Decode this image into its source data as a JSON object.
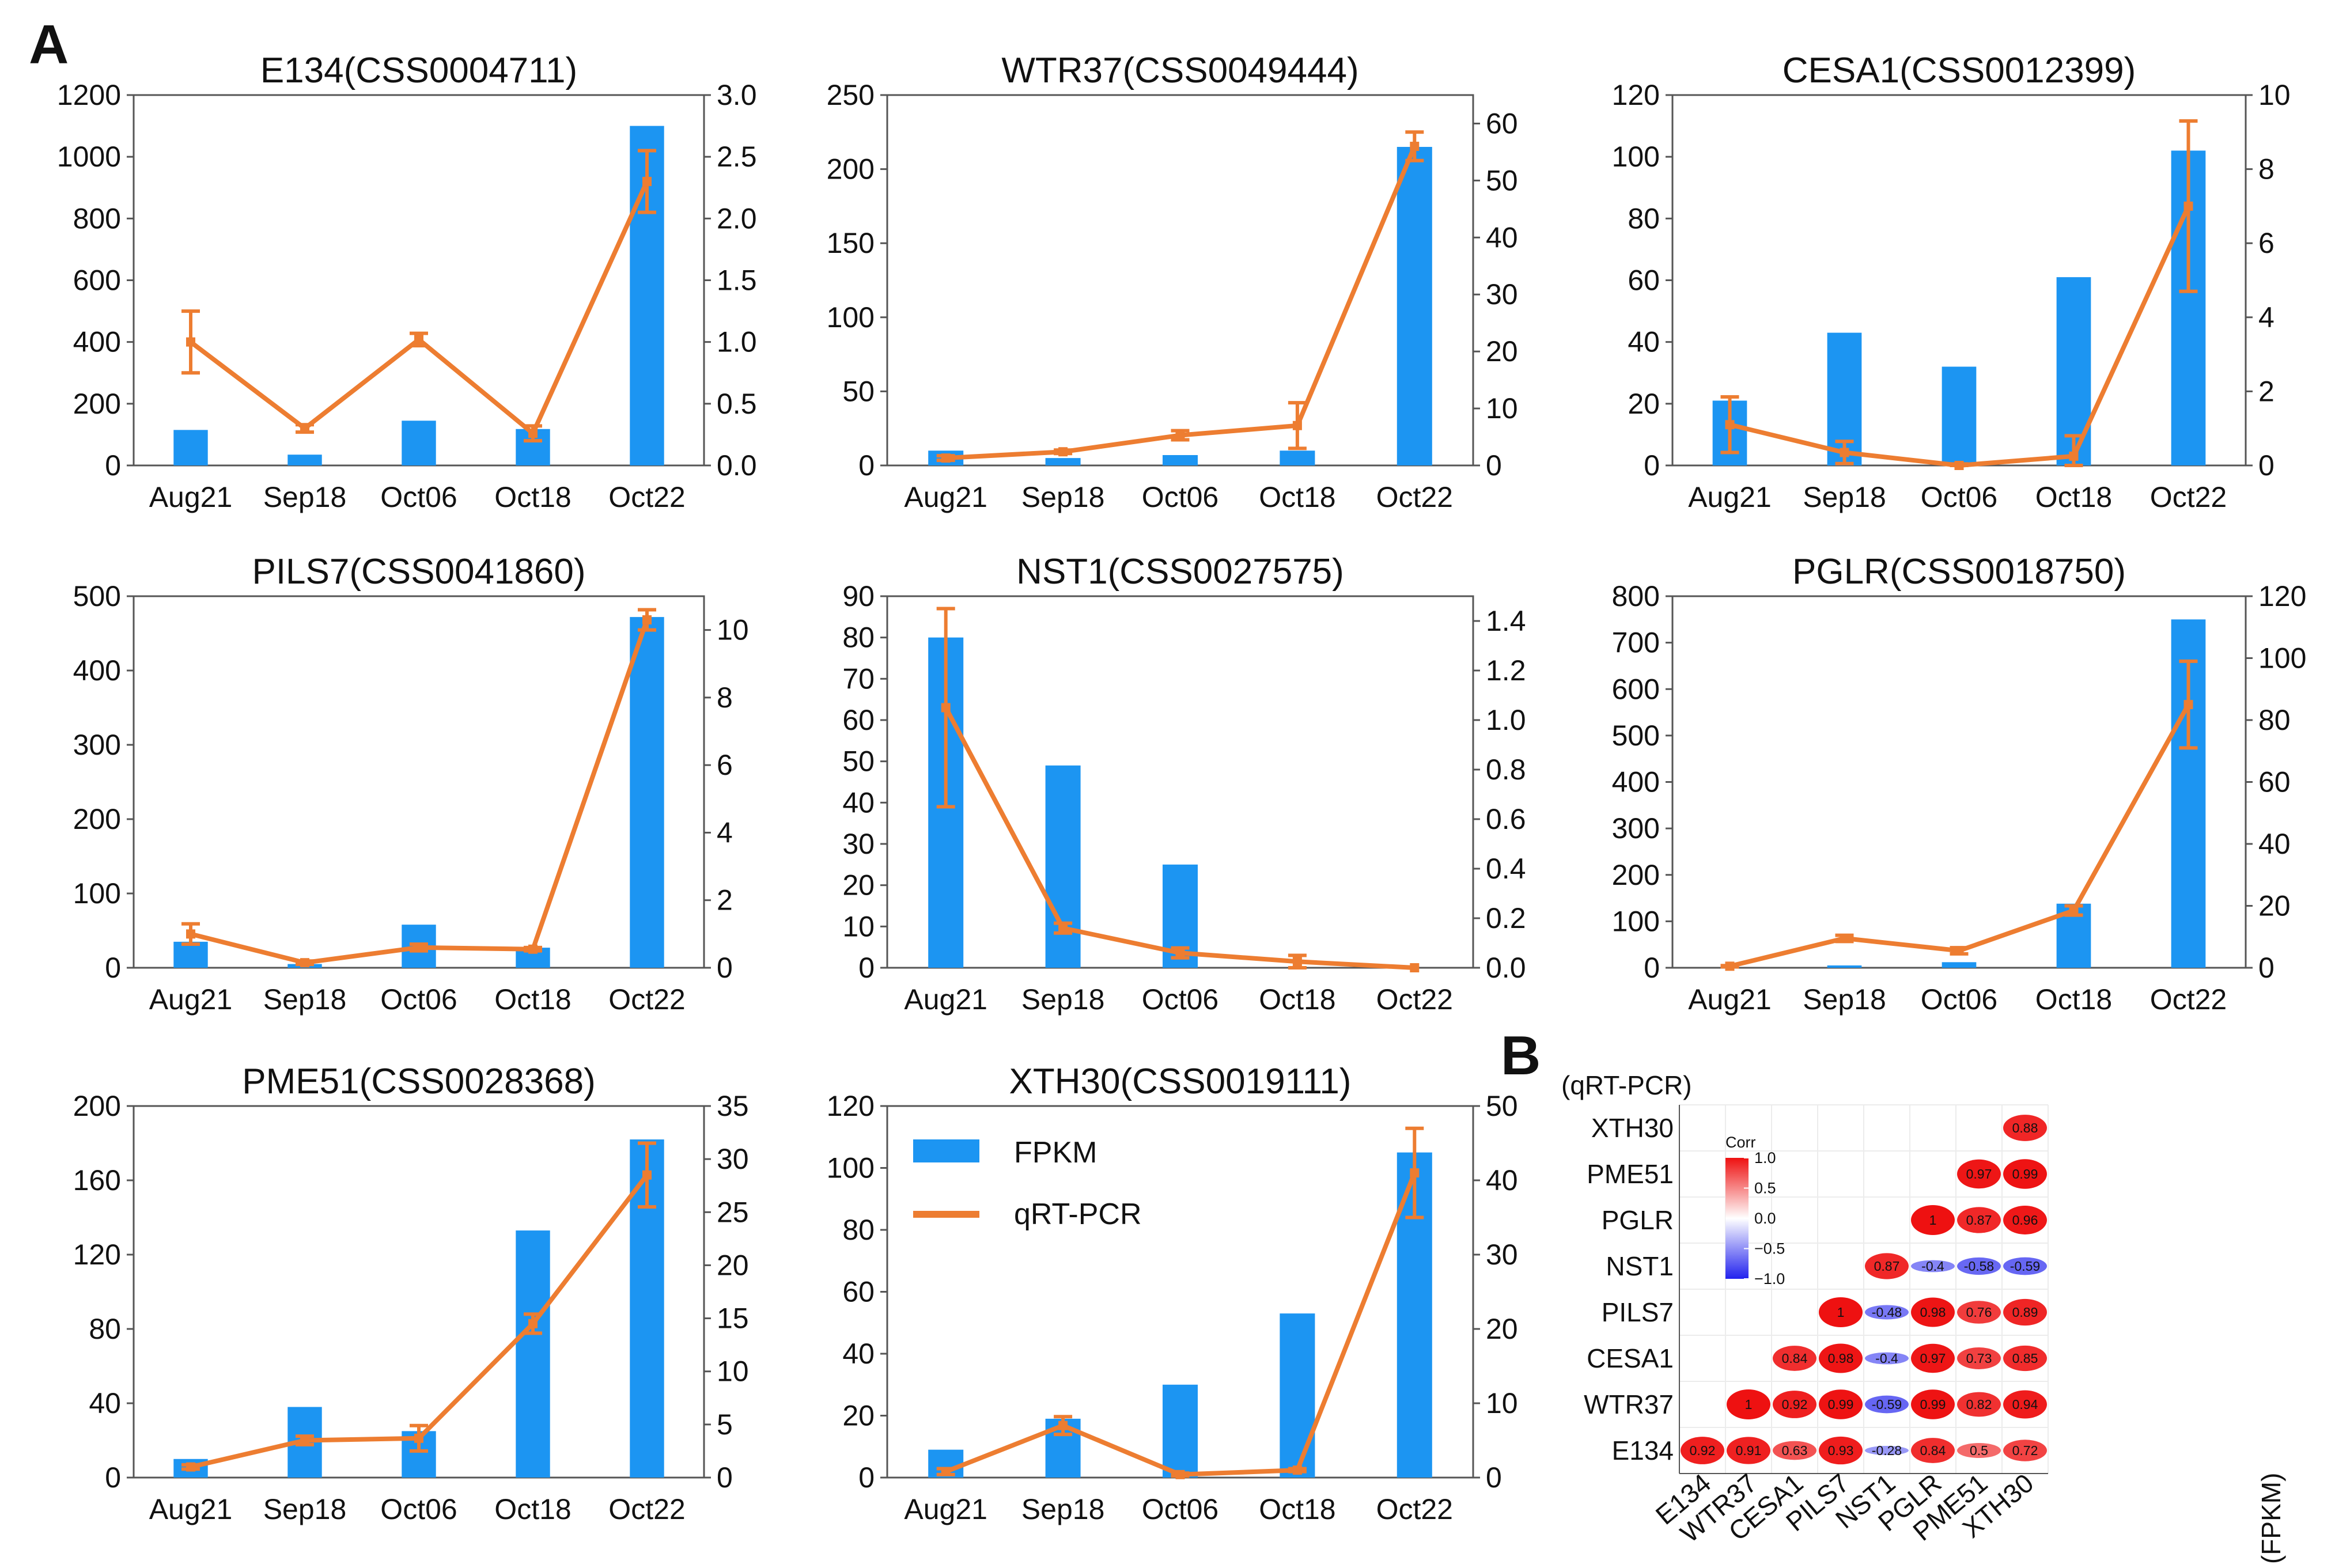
{
  "panel_labels": [
    "A",
    "B"
  ],
  "colors": {
    "bar": "#1c95f2",
    "line": "#ed7d31",
    "axis": "#555555",
    "corr_high": "#ee1111",
    "corr_mid": "#ffffff",
    "corr_low": "#2222ee"
  },
  "legend": {
    "bar_label": "FPKM",
    "line_label": "qRT-PCR"
  },
  "chart_data": [
    {
      "type": "bar+line",
      "title": "E134(CSS0004711)",
      "categories": [
        "Aug21",
        "Sep18",
        "Oct06",
        "Oct18",
        "Oct22"
      ],
      "series": [
        {
          "name": "FPKM",
          "axis": "left",
          "values": [
            115,
            35,
            145,
            118,
            1100
          ]
        },
        {
          "name": "qRT-PCR",
          "axis": "right",
          "values": [
            1.0,
            0.3,
            1.02,
            0.26,
            2.3
          ],
          "errors": [
            0.25,
            0.03,
            0.05,
            0.06,
            0.25
          ]
        }
      ],
      "y_left": {
        "min": 0,
        "max": 1200,
        "ticks": [
          "0",
          "200",
          "400",
          "600",
          "800",
          "1000",
          "1200"
        ]
      },
      "y_right": {
        "min": 0,
        "max": 3.0,
        "ticks": [
          "0.0",
          "0.5",
          "1.0",
          "1.5",
          "2.0",
          "2.5",
          "3.0"
        ]
      }
    },
    {
      "type": "bar+line",
      "title": "WTR37(CSS0049444)",
      "categories": [
        "Aug21",
        "Sep18",
        "Oct06",
        "Oct18",
        "Oct22"
      ],
      "series": [
        {
          "name": "FPKM",
          "axis": "left",
          "values": [
            10,
            5,
            7,
            10,
            215
          ]
        },
        {
          "name": "qRT-PCR",
          "axis": "right",
          "values": [
            1.3,
            2.4,
            5.3,
            7.0,
            56
          ],
          "errors": [
            0.4,
            0.3,
            0.8,
            4.0,
            2.5
          ]
        }
      ],
      "y_left": {
        "min": 0,
        "max": 250,
        "ticks": [
          "0",
          "50",
          "100",
          "150",
          "200",
          "250"
        ]
      },
      "y_right": {
        "min": 0,
        "max": 65,
        "ticks": [
          "0",
          "10",
          "20",
          "30",
          "40",
          "50",
          "60"
        ]
      }
    },
    {
      "type": "bar+line",
      "title": "CESA1(CSS0012399)",
      "categories": [
        "Aug21",
        "Sep18",
        "Oct06",
        "Oct18",
        "Oct22"
      ],
      "series": [
        {
          "name": "FPKM",
          "axis": "left",
          "values": [
            21,
            43,
            32,
            61,
            102
          ]
        },
        {
          "name": "qRT-PCR",
          "axis": "right",
          "values": [
            1.1,
            0.35,
            0.0,
            0.25,
            7.0
          ],
          "errors": [
            0.75,
            0.3,
            0.04,
            0.55,
            2.3
          ]
        }
      ],
      "y_left": {
        "min": 0,
        "max": 120,
        "ticks": [
          "0",
          "20",
          "40",
          "60",
          "80",
          "100",
          "120"
        ]
      },
      "y_right": {
        "min": 0,
        "max": 10,
        "ticks": [
          "0",
          "2",
          "4",
          "6",
          "8",
          "10"
        ]
      }
    },
    {
      "type": "bar+line",
      "title": "PILS7(CSS0041860)",
      "categories": [
        "Aug21",
        "Sep18",
        "Oct06",
        "Oct18",
        "Oct22"
      ],
      "series": [
        {
          "name": "FPKM",
          "axis": "left",
          "values": [
            35,
            5,
            58,
            27,
            472
          ]
        },
        {
          "name": "qRT-PCR",
          "axis": "right",
          "values": [
            1.0,
            0.15,
            0.6,
            0.55,
            10.3
          ],
          "errors": [
            0.3,
            0.05,
            0.1,
            0.05,
            0.3
          ]
        }
      ],
      "y_left": {
        "min": 0,
        "max": 500,
        "ticks": [
          "0",
          "100",
          "200",
          "300",
          "400",
          "500"
        ]
      },
      "y_right": {
        "min": 0,
        "max": 11,
        "ticks": [
          "0",
          "2",
          "4",
          "6",
          "8",
          "10"
        ]
      }
    },
    {
      "type": "bar+line",
      "title": "NST1(CSS0027575)",
      "categories": [
        "Aug21",
        "Sep18",
        "Oct06",
        "Oct18",
        "Oct22"
      ],
      "series": [
        {
          "name": "FPKM",
          "axis": "left",
          "values": [
            80,
            49,
            25,
            0,
            0
          ]
        },
        {
          "name": "qRT-PCR",
          "axis": "right",
          "values": [
            1.05,
            0.16,
            0.06,
            0.025,
            0.0
          ],
          "errors": [
            0.4,
            0.02,
            0.02,
            0.025,
            0.0
          ]
        }
      ],
      "y_left": {
        "min": 0,
        "max": 90,
        "ticks": [
          "0",
          "10",
          "20",
          "30",
          "40",
          "50",
          "60",
          "70",
          "80",
          "90"
        ]
      },
      "y_right": {
        "min": 0,
        "max": 1.5,
        "ticks": [
          "0.0",
          "0.2",
          "0.4",
          "0.6",
          "0.8",
          "1.0",
          "1.2",
          "1.4"
        ]
      }
    },
    {
      "type": "bar+line",
      "title": "PGLR(CSS0018750)",
      "categories": [
        "Aug21",
        "Sep18",
        "Oct06",
        "Oct18",
        "Oct22"
      ],
      "series": [
        {
          "name": "FPKM",
          "axis": "left",
          "values": [
            0,
            5,
            12,
            138,
            750
          ]
        },
        {
          "name": "qRT-PCR",
          "axis": "right",
          "values": [
            0.5,
            9.5,
            5.5,
            18.5,
            85
          ],
          "errors": [
            0.2,
            1.0,
            1.0,
            1.5,
            14
          ]
        }
      ],
      "y_left": {
        "min": 0,
        "max": 800,
        "ticks": [
          "0",
          "100",
          "200",
          "300",
          "400",
          "500",
          "600",
          "700",
          "800"
        ]
      },
      "y_right": {
        "min": 0,
        "max": 120,
        "ticks": [
          "0",
          "20",
          "40",
          "60",
          "80",
          "100",
          "120"
        ]
      }
    },
    {
      "type": "bar+line",
      "title": "PME51(CSS0028368)",
      "categories": [
        "Aug21",
        "Sep18",
        "Oct06",
        "Oct18",
        "Oct22"
      ],
      "series": [
        {
          "name": "FPKM",
          "axis": "left",
          "values": [
            10,
            38,
            25,
            133,
            182
          ]
        },
        {
          "name": "qRT-PCR",
          "axis": "right",
          "values": [
            1.0,
            3.5,
            3.7,
            14.5,
            28.5
          ],
          "errors": [
            0.2,
            0.4,
            1.2,
            0.9,
            3.0
          ]
        }
      ],
      "y_left": {
        "min": 0,
        "max": 200,
        "ticks": [
          "0",
          "40",
          "80",
          "120",
          "160",
          "200"
        ]
      },
      "y_right": {
        "min": 0,
        "max": 35,
        "ticks": [
          "0",
          "5",
          "10",
          "15",
          "20",
          "25",
          "30",
          "35"
        ]
      }
    },
    {
      "type": "bar+line",
      "title": "XTH30(CSS0019111)",
      "categories": [
        "Aug21",
        "Sep18",
        "Oct06",
        "Oct18",
        "Oct22"
      ],
      "series": [
        {
          "name": "FPKM",
          "axis": "left",
          "values": [
            9,
            19,
            30,
            53,
            105
          ]
        },
        {
          "name": "qRT-PCR",
          "axis": "right",
          "values": [
            0.8,
            7.0,
            0.4,
            1.0,
            41
          ],
          "errors": [
            0.4,
            1.2,
            0.2,
            0.2,
            6.0
          ]
        }
      ],
      "y_left": {
        "min": 0,
        "max": 120,
        "ticks": [
          "0",
          "20",
          "40",
          "60",
          "80",
          "100",
          "120"
        ]
      },
      "y_right": {
        "min": 0,
        "max": 50,
        "ticks": [
          "0",
          "10",
          "20",
          "30",
          "40",
          "50"
        ]
      }
    },
    {
      "type": "heatmap",
      "y_axis_title": "(qRT-PCR)",
      "x_axis_title": "(FPKM)",
      "rows": [
        "XTH30",
        "PME51",
        "PGLR",
        "NST1",
        "PILS7",
        "CESA1",
        "WTR37",
        "E134"
      ],
      "cols": [
        "E134",
        "WTR37",
        "CESA1",
        "PILS7",
        "NST1",
        "PGLR",
        "PME51",
        "XTH30"
      ],
      "colorbar": {
        "title": "Corr",
        "min": -1.0,
        "max": 1.0,
        "ticks": [
          "1.0",
          "0.5",
          "0.0",
          "−0.5",
          "−1.0"
        ]
      },
      "cells": [
        {
          "row": "XTH30",
          "col": "XTH30",
          "value": 0.88,
          "label": "0.88"
        },
        {
          "row": "PME51",
          "col": "PME51",
          "value": 0.97,
          "label": "0.97"
        },
        {
          "row": "PME51",
          "col": "XTH30",
          "value": 0.99,
          "label": "0.99"
        },
        {
          "row": "PGLR",
          "col": "PGLR",
          "value": 1,
          "label": "1"
        },
        {
          "row": "PGLR",
          "col": "PME51",
          "value": 0.87,
          "label": "0.87"
        },
        {
          "row": "PGLR",
          "col": "XTH30",
          "value": 0.96,
          "label": "0.96"
        },
        {
          "row": "NST1",
          "col": "NST1",
          "value": 0.87,
          "label": "0.87"
        },
        {
          "row": "NST1",
          "col": "PGLR",
          "value": -0.4,
          "label": "-0.4"
        },
        {
          "row": "NST1",
          "col": "PME51",
          "value": -0.58,
          "label": "-0.58"
        },
        {
          "row": "NST1",
          "col": "XTH30",
          "value": -0.59,
          "label": "-0.59"
        },
        {
          "row": "PILS7",
          "col": "PILS7",
          "value": 1,
          "label": "1"
        },
        {
          "row": "PILS7",
          "col": "NST1",
          "value": -0.48,
          "label": "-0.48"
        },
        {
          "row": "PILS7",
          "col": "PGLR",
          "value": 0.98,
          "label": "0.98"
        },
        {
          "row": "PILS7",
          "col": "PME51",
          "value": 0.76,
          "label": "0.76"
        },
        {
          "row": "PILS7",
          "col": "XTH30",
          "value": 0.89,
          "label": "0.89"
        },
        {
          "row": "CESA1",
          "col": "CESA1",
          "value": 0.84,
          "label": "0.84"
        },
        {
          "row": "CESA1",
          "col": "PILS7",
          "value": 0.98,
          "label": "0.98"
        },
        {
          "row": "CESA1",
          "col": "NST1",
          "value": -0.4,
          "label": "-0.4"
        },
        {
          "row": "CESA1",
          "col": "PGLR",
          "value": 0.97,
          "label": "0.97"
        },
        {
          "row": "CESA1",
          "col": "PME51",
          "value": 0.73,
          "label": "0.73"
        },
        {
          "row": "CESA1",
          "col": "XTH30",
          "value": 0.85,
          "label": "0.85"
        },
        {
          "row": "WTR37",
          "col": "WTR37",
          "value": 1,
          "label": "1"
        },
        {
          "row": "WTR37",
          "col": "CESA1",
          "value": 0.92,
          "label": "0.92"
        },
        {
          "row": "WTR37",
          "col": "PILS7",
          "value": 0.99,
          "label": "0.99"
        },
        {
          "row": "WTR37",
          "col": "NST1",
          "value": -0.59,
          "label": "-0.59"
        },
        {
          "row": "WTR37",
          "col": "PGLR",
          "value": 0.99,
          "label": "0.99"
        },
        {
          "row": "WTR37",
          "col": "PME51",
          "value": 0.82,
          "label": "0.82"
        },
        {
          "row": "WTR37",
          "col": "XTH30",
          "value": 0.94,
          "label": "0.94"
        },
        {
          "row": "E134",
          "col": "E134",
          "value": 0.92,
          "label": "0.92"
        },
        {
          "row": "E134",
          "col": "WTR37",
          "value": 0.91,
          "label": "0.91"
        },
        {
          "row": "E134",
          "col": "CESA1",
          "value": 0.63,
          "label": "0.63"
        },
        {
          "row": "E134",
          "col": "PILS7",
          "value": 0.93,
          "label": "0.93"
        },
        {
          "row": "E134",
          "col": "NST1",
          "value": -0.28,
          "label": "-0.28"
        },
        {
          "row": "E134",
          "col": "PGLR",
          "value": 0.84,
          "label": "0.84"
        },
        {
          "row": "E134",
          "col": "PME51",
          "value": 0.5,
          "label": "0.5"
        },
        {
          "row": "E134",
          "col": "XTH30",
          "value": 0.72,
          "label": "0.72"
        }
      ]
    }
  ]
}
